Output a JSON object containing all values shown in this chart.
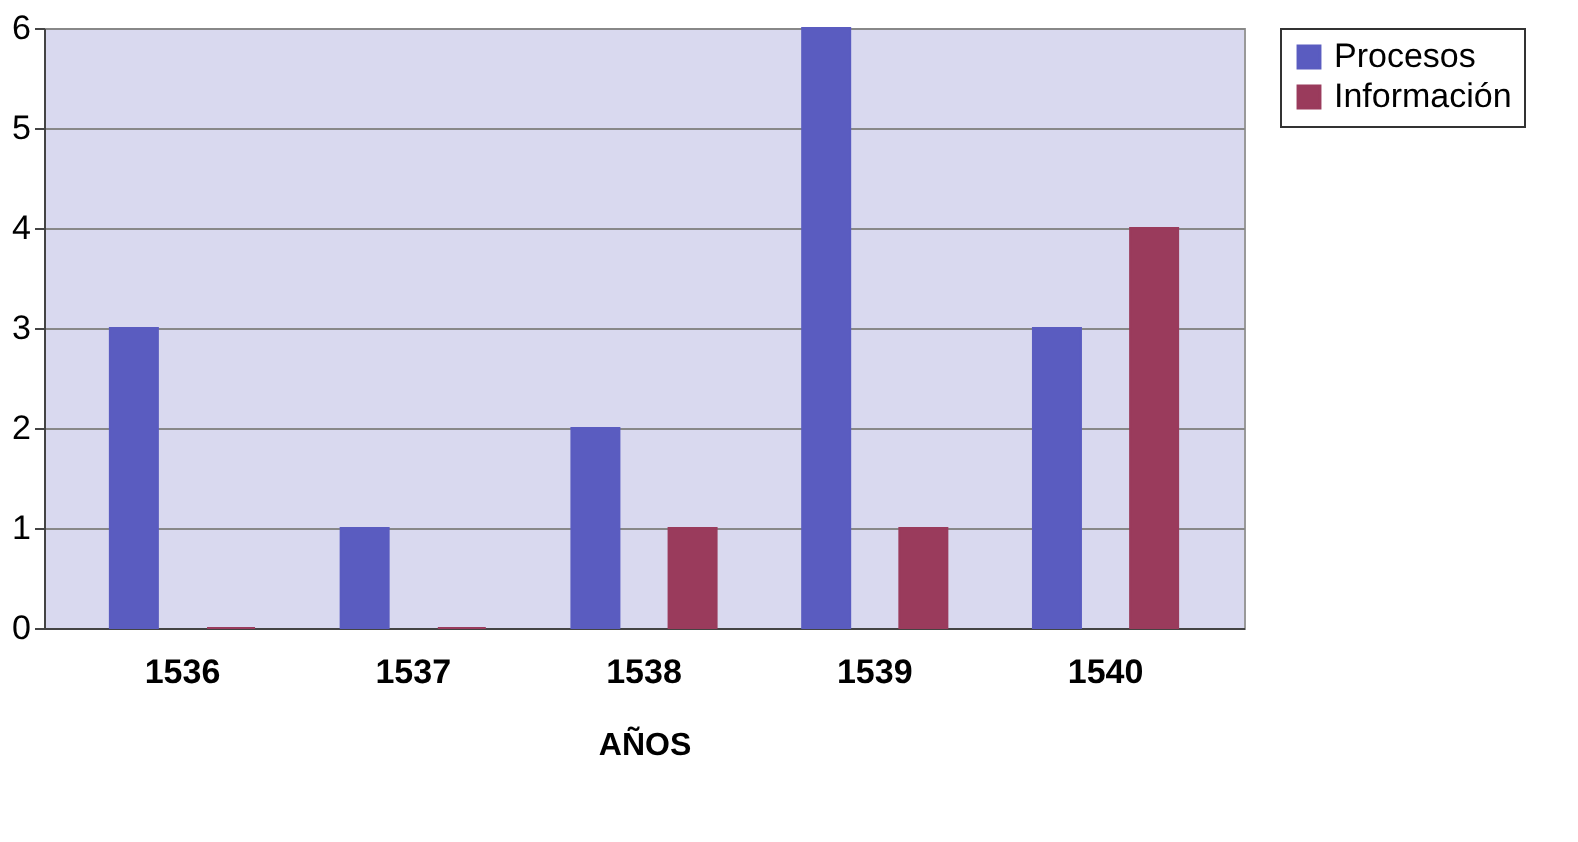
{
  "chart_data": {
    "type": "bar",
    "xlabel": "AÑOS",
    "categories": [
      "1536",
      "1537",
      "1538",
      "1539",
      "1540"
    ],
    "series": [
      {
        "name": "Procesos",
        "color": "#5a5cc0",
        "values": [
          3,
          1,
          2,
          6,
          3
        ]
      },
      {
        "name": "Información",
        "color": "#9a3b5c",
        "values": [
          0,
          0,
          1,
          1,
          4
        ]
      }
    ],
    "ylim": [
      0,
      6
    ],
    "yticks": [
      0,
      1,
      2,
      3,
      4,
      5,
      6
    ],
    "grid": "y",
    "legend": "right"
  }
}
